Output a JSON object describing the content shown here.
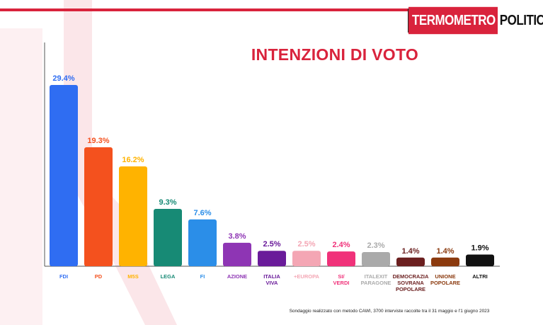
{
  "header": {
    "logo_part1": "TERMOMETRO",
    "logo_part2": "POLITICO"
  },
  "chart_data": {
    "type": "bar",
    "title": "INTENZIONI DI VOTO",
    "xlabel": "",
    "ylabel": "",
    "ylim": [
      0,
      32
    ],
    "grid": false,
    "categories": [
      [
        "FDI"
      ],
      [
        "PD"
      ],
      [
        "M5S"
      ],
      [
        "LEGA"
      ],
      [
        "FI"
      ],
      [
        "AZIONE"
      ],
      [
        "ITALIA",
        "VIVA"
      ],
      [
        "+EUROPA"
      ],
      [
        "SI/",
        "VERDI"
      ],
      [
        "ITALEXIT",
        "PARAGONE"
      ],
      [
        "DEMOCRAZIA",
        "SOVRANA",
        "POPOLARE"
      ],
      [
        "UNIONE",
        "POPOLARE"
      ],
      [
        "ALTRI"
      ]
    ],
    "values": [
      29.4,
      19.3,
      16.2,
      9.3,
      7.6,
      3.8,
      2.5,
      2.5,
      2.4,
      2.3,
      1.4,
      1.4,
      1.9
    ],
    "value_labels": [
      "29.4%",
      "19.3%",
      "16.2%",
      "9.3%",
      "7.6%",
      "3.8%",
      "2.5%",
      "2.5%",
      "2.4%",
      "2.3%",
      "1.4%",
      "1.4%",
      "1.9%"
    ],
    "colors": [
      "#2f6df2",
      "#f4511e",
      "#ffb300",
      "#178a75",
      "#2b8ee8",
      "#8e35b4",
      "#6a1b9a",
      "#f4a6b4",
      "#f0327a",
      "#aaaaaa",
      "#6b1f1f",
      "#8b3a0e",
      "#111111"
    ],
    "label_colors": [
      "#2f6df2",
      "#f4511e",
      "#ffb300",
      "#178a75",
      "#2b8ee8",
      "#8e35b4",
      "#6a1b9a",
      "#f4a6b4",
      "#f0327a",
      "#aaaaaa",
      "#6b1f1f",
      "#8b3a0e",
      "#111111"
    ]
  },
  "footer": {
    "note": "Sondaggio realizzato con metodo CAWI, 3700 interviste raccolte tra il 31 maggio e l'1 giugno 2023"
  }
}
